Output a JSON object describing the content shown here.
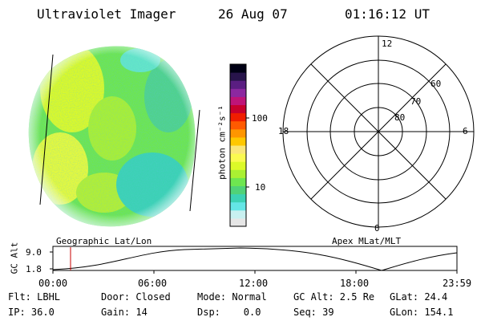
{
  "header": {
    "title": "Ultraviolet Imager",
    "date": "26 Aug 07",
    "time": "01:16:12 UT"
  },
  "colorbar": {
    "unit_label": "photon cm⁻²s⁻¹",
    "ticks": [
      "100",
      "10"
    ],
    "colors": [
      "#e6e6e6",
      "#c8f0f0",
      "#64e6e6",
      "#3cd2b4",
      "#50d278",
      "#6ee650",
      "#aaf032",
      "#dcfa28",
      "#fafa50",
      "#fae678",
      "#ffc800",
      "#ff9600",
      "#ff5a00",
      "#f01e00",
      "#c8002d",
      "#be1478",
      "#8c28a0",
      "#5a1e82",
      "#28144b",
      "#000014"
    ]
  },
  "polar_plot": {
    "mlt_labels": [
      "12",
      "6",
      "0",
      "18"
    ],
    "lat_labels": [
      "60",
      "70",
      "80"
    ]
  },
  "orbit": {
    "y_label": "GC Alt",
    "y_ticks": [
      "9.0",
      "1.8"
    ],
    "left_title": "Geographic Lat/Lon",
    "right_title": "Apex MLat/MLT",
    "time_ticks": [
      "00:00",
      "06:00",
      "12:00",
      "18:00",
      "23:59"
    ],
    "marker_color": "#c80000"
  },
  "info": {
    "row1": [
      "Flt: LBHL",
      "Door: Closed",
      "Mode: Normal",
      "GC Alt: 2.5 Re",
      "GLat: 24.4"
    ],
    "row2": [
      "IP: 36.0",
      "Gain: 14",
      "Dsp:    0.0",
      "Seq: 39",
      "GLon: 154.1"
    ]
  }
}
